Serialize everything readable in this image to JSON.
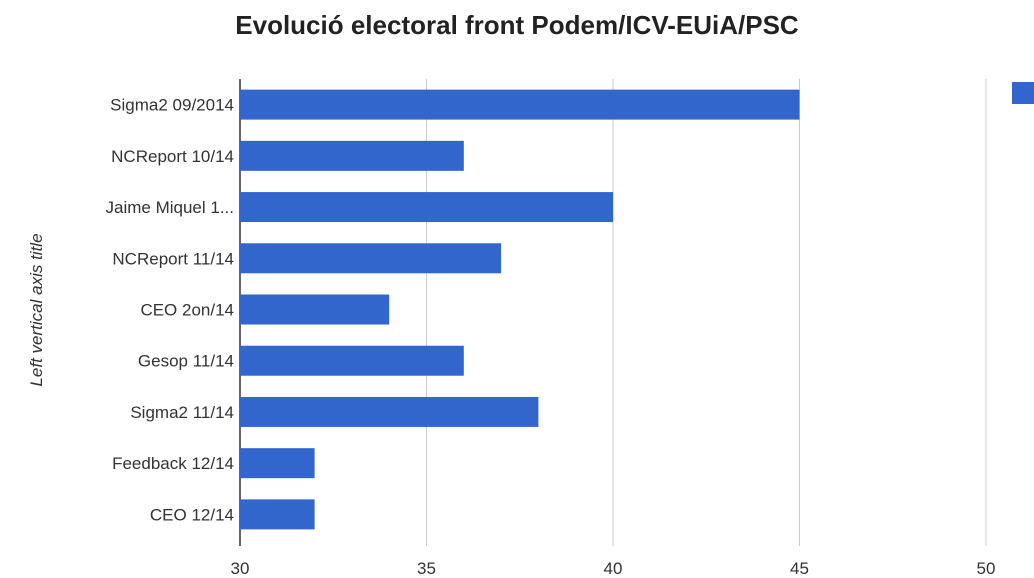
{
  "chart_data": {
    "type": "bar",
    "orientation": "horizontal",
    "title": "Evolució electoral front Podem/ICV-EUiA/PSC",
    "ylabel": "Left vertical axis title",
    "xlabel": "",
    "categories": [
      "Sigma2 09/2014",
      "NCReport 10/14",
      "Jaime Miquel 1...",
      "NCReport 11/14",
      "CEO 2on/14",
      "Gesop 11/14",
      "Sigma2 11/14",
      "Feedback 12/14",
      "CEO 12/14"
    ],
    "values": [
      45,
      36,
      40,
      37,
      34,
      36,
      38,
      32,
      32
    ],
    "xlim": [
      30,
      50
    ],
    "xticks": [
      "30",
      "35",
      "40",
      "45",
      "50"
    ],
    "grid": true,
    "legend": "right",
    "bar_color": "#3366cc",
    "grid_color": "#cccccc"
  }
}
